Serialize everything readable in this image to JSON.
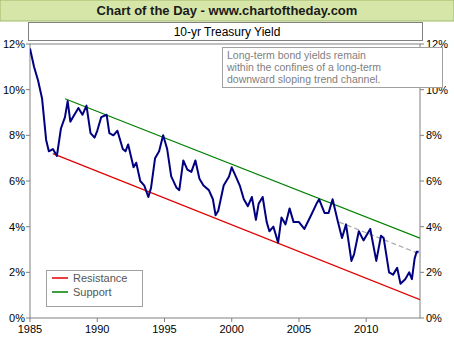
{
  "chart_data": {
    "type": "line",
    "title": "Chart of the Day - www.chartoftheday.com",
    "subtitle": "10-yr Treasury Yield",
    "annotation": [
      "Long-term bond yields remain",
      "within the confines of a long-term",
      "downward sloping trend channel."
    ],
    "xlim": [
      1985,
      2014
    ],
    "xticks": [
      1985,
      1990,
      1995,
      2000,
      2005,
      2010
    ],
    "ylim": [
      0,
      12
    ],
    "yticks": [
      {
        "value": 0,
        "label": "0%"
      },
      {
        "value": 2,
        "label": "2%"
      },
      {
        "value": 4,
        "label": "4%"
      },
      {
        "value": 6,
        "label": "6%"
      },
      {
        "value": 8,
        "label": "8%"
      },
      {
        "value": 10,
        "label": "10%"
      },
      {
        "value": 12,
        "label": "12%"
      }
    ],
    "grid": false,
    "legend": "bottom-left",
    "series": [
      {
        "color": "#000080",
        "x": [
          1985.0,
          1985.3,
          1985.6,
          1985.9,
          1986.2,
          1986.4,
          1986.7,
          1987.0,
          1987.3,
          1987.6,
          1987.8,
          1988.0,
          1988.3,
          1988.6,
          1988.9,
          1989.2,
          1989.5,
          1989.8,
          1990.0,
          1990.3,
          1990.7,
          1990.9,
          1991.2,
          1991.5,
          1991.9,
          1992.1,
          1992.3,
          1992.7,
          1992.9,
          1993.2,
          1993.5,
          1993.8,
          1994.0,
          1994.3,
          1994.6,
          1994.9,
          1995.2,
          1995.5,
          1995.9,
          1996.1,
          1996.4,
          1996.7,
          1997.0,
          1997.3,
          1997.6,
          1997.9,
          1998.3,
          1998.6,
          1998.8,
          1999.0,
          1999.4,
          1999.8,
          2000.0,
          2000.3,
          2000.6,
          2000.9,
          2001.2,
          2001.5,
          2001.8,
          2002.0,
          2002.3,
          2002.6,
          2002.8,
          2003.1,
          2003.45,
          2003.7,
          2004.0,
          2004.3,
          2004.6,
          2005.0,
          2005.4,
          2005.9,
          2006.3,
          2006.5,
          2006.9,
          2007.2,
          2007.5,
          2007.9,
          2008.2,
          2008.5,
          2008.9,
          2009.1,
          2009.45,
          2009.8,
          2010.3,
          2010.75,
          2011.1,
          2011.3,
          2011.7,
          2012.0,
          2012.3,
          2012.55,
          2012.9,
          2013.2,
          2013.4,
          2013.6,
          2013.75,
          2013.9
        ],
        "values": [
          11.8,
          11.0,
          10.4,
          9.6,
          7.8,
          7.3,
          7.4,
          7.1,
          8.3,
          8.8,
          9.5,
          8.6,
          8.9,
          9.2,
          8.9,
          9.3,
          8.1,
          7.9,
          8.2,
          8.8,
          8.9,
          8.1,
          8.0,
          8.2,
          7.4,
          7.3,
          7.6,
          6.6,
          6.8,
          6.0,
          5.8,
          5.3,
          5.7,
          7.0,
          7.3,
          8.0,
          7.4,
          6.2,
          5.7,
          5.6,
          6.9,
          6.5,
          6.4,
          6.9,
          6.1,
          5.8,
          5.6,
          5.2,
          4.5,
          4.7,
          5.8,
          6.2,
          6.6,
          6.2,
          5.8,
          5.2,
          4.9,
          5.3,
          4.3,
          5.0,
          5.3,
          4.2,
          3.8,
          4.0,
          3.3,
          4.4,
          4.1,
          4.8,
          4.2,
          4.2,
          3.9,
          4.5,
          5.0,
          5.2,
          4.6,
          4.6,
          5.2,
          4.2,
          3.5,
          4.1,
          2.5,
          2.8,
          3.8,
          3.4,
          3.9,
          2.5,
          3.6,
          3.5,
          2.0,
          1.9,
          2.2,
          1.5,
          1.7,
          2.0,
          1.7,
          2.6,
          2.9,
          2.9
        ]
      },
      {
        "name": "Resistance",
        "color": "#e00000",
        "x": [
          1986.7,
          2014
        ],
        "values": [
          7.2,
          0.8
        ]
      },
      {
        "name": "Support",
        "color": "#008000",
        "x": [
          1987.6,
          2014
        ],
        "values": [
          9.6,
          3.5
        ]
      },
      {
        "color": "#a8a8a8",
        "line_style": "dashed",
        "x": [
          2008,
          2014
        ],
        "values": [
          4.2,
          2.8
        ]
      }
    ]
  }
}
